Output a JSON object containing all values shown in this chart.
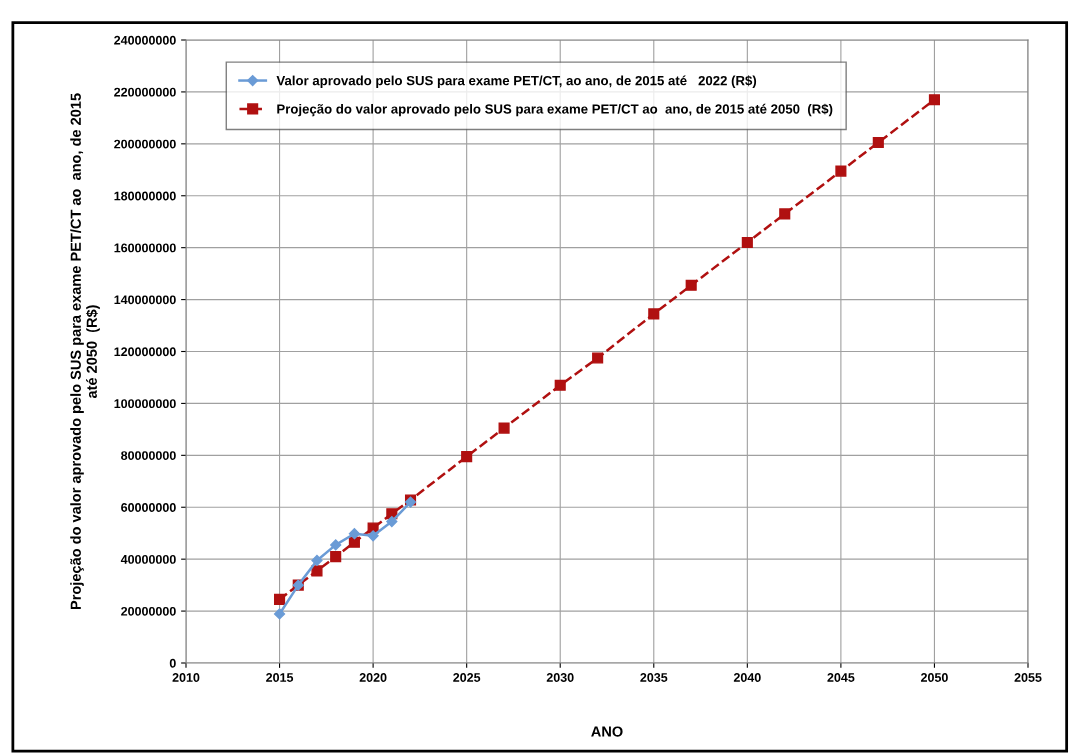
{
  "chart_data": {
    "type": "line",
    "xlabel": "ANO",
    "ylabel": "Projeção do valor aprovado pelo SUS para exame PET/CT ao  ano, de 2015\naté 2050  (R$)",
    "xlim": [
      2010,
      2055
    ],
    "xticks": [
      2010,
      2015,
      2020,
      2025,
      2030,
      2035,
      2040,
      2045,
      2050,
      2055
    ],
    "ylim": [
      0,
      240000000
    ],
    "yticks": [
      0,
      20000000,
      40000000,
      60000000,
      80000000,
      100000000,
      120000000,
      140000000,
      160000000,
      180000000,
      200000000,
      220000000,
      240000000
    ],
    "grid": true,
    "legend": "top left",
    "series": [
      {
        "name": "Valor aprovado pelo SUS para exame PET/CT, ao ano, de 2015 até   2022 (R$)",
        "color": "#6a9bd6",
        "marker": "diamond",
        "line_style": "solid",
        "x": [
          2015,
          2016,
          2017,
          2018,
          2019,
          2020,
          2021,
          2022
        ],
        "values": [
          18900000,
          30000000,
          39500000,
          45500000,
          49800000,
          49000000,
          54500000,
          62000000
        ]
      },
      {
        "name": "Projeção do valor aprovado pelo SUS para exame PET/CT ao  ano, de 2015 até 2050  (R$)",
        "color": "#b01010",
        "marker": "square",
        "line_style": "dashed",
        "x": [
          2015,
          2016,
          2017,
          2018,
          2019,
          2020,
          2021,
          2022,
          2025,
          2027,
          2030,
          2032,
          2035,
          2037,
          2040,
          2042,
          2045,
          2047,
          2050
        ],
        "values": [
          24500000,
          30000000,
          35500000,
          41000000,
          46500000,
          52000000,
          57500000,
          62800000,
          79500000,
          90500000,
          107000000,
          117500000,
          134500000,
          145500000,
          162000000,
          173000000,
          189500000,
          200500000,
          217000000
        ]
      }
    ]
  }
}
